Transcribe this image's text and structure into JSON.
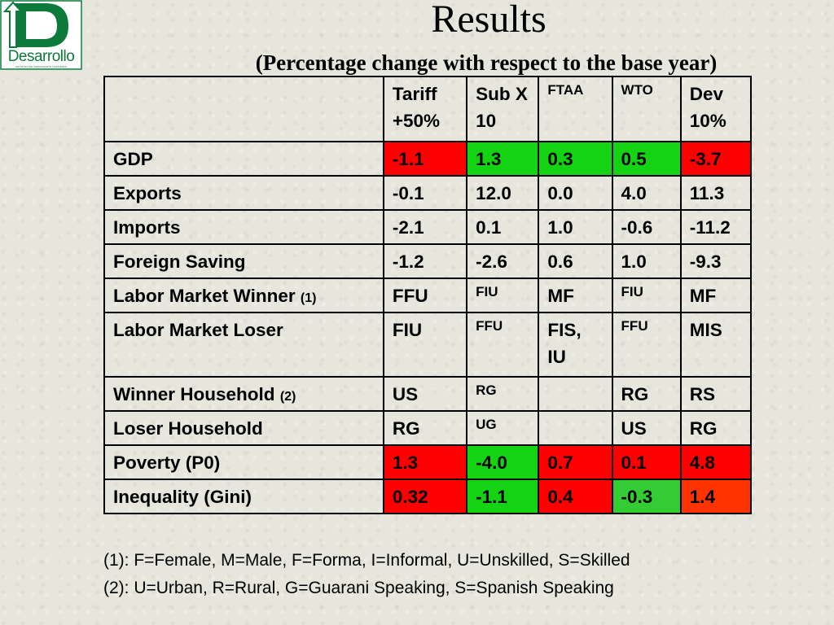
{
  "logo": {
    "word": "Desarrollo",
    "tagline": "INSTITUTO DE CAPACITACIÓN Y ESTUDIOS"
  },
  "title": "Results",
  "subtitle": "(Percentage change with respect to the base year)",
  "table": {
    "headers": [
      "",
      "Tariff +50%",
      "Sub X 10",
      "FTAA",
      "WTO",
      "Dev 10%"
    ],
    "rows": [
      {
        "label": "GDP",
        "note": "",
        "cells": [
          {
            "v": "-1.1",
            "bg": "#ff0000",
            "small": false
          },
          {
            "v": "1.3",
            "bg": "#13d313",
            "small": false
          },
          {
            "v": "0.3",
            "bg": "#13d313",
            "small": false
          },
          {
            "v": "0.5",
            "bg": "#13d313",
            "small": false
          },
          {
            "v": "-3.7",
            "bg": "#ff0000",
            "small": false
          }
        ]
      },
      {
        "label": "Exports",
        "note": "",
        "cells": [
          {
            "v": "-0.1",
            "bg": "",
            "small": false
          },
          {
            "v": "12.0",
            "bg": "",
            "small": false
          },
          {
            "v": "0.0",
            "bg": "",
            "small": false
          },
          {
            "v": "4.0",
            "bg": "",
            "small": false
          },
          {
            "v": "11.3",
            "bg": "",
            "small": false
          }
        ]
      },
      {
        "label": "Imports",
        "note": "",
        "cells": [
          {
            "v": "-2.1",
            "bg": "",
            "small": false
          },
          {
            "v": "0.1",
            "bg": "",
            "small": false
          },
          {
            "v": "1.0",
            "bg": "",
            "small": false
          },
          {
            "v": "-0.6",
            "bg": "",
            "small": false
          },
          {
            "v": "-11.2",
            "bg": "",
            "small": false
          }
        ]
      },
      {
        "label": "Foreign Saving",
        "note": "",
        "cells": [
          {
            "v": "-1.2",
            "bg": "",
            "small": false
          },
          {
            "v": "-2.6",
            "bg": "",
            "small": false
          },
          {
            "v": "0.6",
            "bg": "",
            "small": false
          },
          {
            "v": "1.0",
            "bg": "",
            "small": false
          },
          {
            "v": "-9.3",
            "bg": "",
            "small": false
          }
        ]
      },
      {
        "label": "Labor Market Winner",
        "note": "(1)",
        "cells": [
          {
            "v": "FFU",
            "bg": "",
            "small": false
          },
          {
            "v": "FIU",
            "bg": "",
            "small": true
          },
          {
            "v": "MF",
            "bg": "",
            "small": false
          },
          {
            "v": "FIU",
            "bg": "",
            "small": true
          },
          {
            "v": "MF",
            "bg": "",
            "small": false
          }
        ]
      },
      {
        "label": "Labor Market Loser",
        "note": "",
        "cells": [
          {
            "v": "FIU",
            "bg": "",
            "small": false
          },
          {
            "v": "FFU",
            "bg": "",
            "small": true
          },
          {
            "v": "FIS, IU",
            "bg": "",
            "small": false
          },
          {
            "v": "FFU",
            "bg": "",
            "small": true
          },
          {
            "v": "MIS",
            "bg": "",
            "small": false
          }
        ]
      },
      {
        "label": "Winner Household",
        "note": "(2)",
        "cells": [
          {
            "v": "US",
            "bg": "",
            "small": false
          },
          {
            "v": "RG",
            "bg": "",
            "small": true
          },
          {
            "v": "",
            "bg": "",
            "small": false
          },
          {
            "v": "RG",
            "bg": "",
            "small": false
          },
          {
            "v": "RS",
            "bg": "",
            "small": false
          }
        ]
      },
      {
        "label": "Loser Household",
        "note": "",
        "cells": [
          {
            "v": "RG",
            "bg": "",
            "small": false
          },
          {
            "v": "UG",
            "bg": "",
            "small": true
          },
          {
            "v": "",
            "bg": "",
            "small": false
          },
          {
            "v": "US",
            "bg": "",
            "small": false
          },
          {
            "v": "RG",
            "bg": "",
            "small": false
          }
        ]
      },
      {
        "label": "Poverty (P0)",
        "note": "",
        "cells": [
          {
            "v": "1.3",
            "bg": "#ff0000",
            "small": false
          },
          {
            "v": "-4.0",
            "bg": "#13d313",
            "small": false
          },
          {
            "v": "0.7",
            "bg": "#ff0000",
            "small": false
          },
          {
            "v": "0.1",
            "bg": "#ff0000",
            "small": false
          },
          {
            "v": "4.8",
            "bg": "#ff0000",
            "small": false
          }
        ]
      },
      {
        "label": "Inequality (Gini)",
        "note": "",
        "cells": [
          {
            "v": "0.32",
            "bg": "#ff0000",
            "small": false
          },
          {
            "v": "-1.1",
            "bg": "#13d313",
            "small": false
          },
          {
            "v": "0.4",
            "bg": "#ff0000",
            "small": false
          },
          {
            "v": "-0.3",
            "bg": "#33cc33",
            "small": false
          },
          {
            "v": "1.4",
            "bg": "#ff3300",
            "small": false
          }
        ]
      }
    ]
  },
  "footnotes": [
    "(1): F=Female, M=Male, F=Forma, I=Informal, U=Unskilled, S=Skilled",
    "(2): U=Urban, R=Rural, G=Guarani Speaking, S=Spanish Speaking"
  ],
  "colors": {
    "negative": "#ff0000",
    "positive": "#13d313",
    "logo_green": "#0b7a3a"
  }
}
